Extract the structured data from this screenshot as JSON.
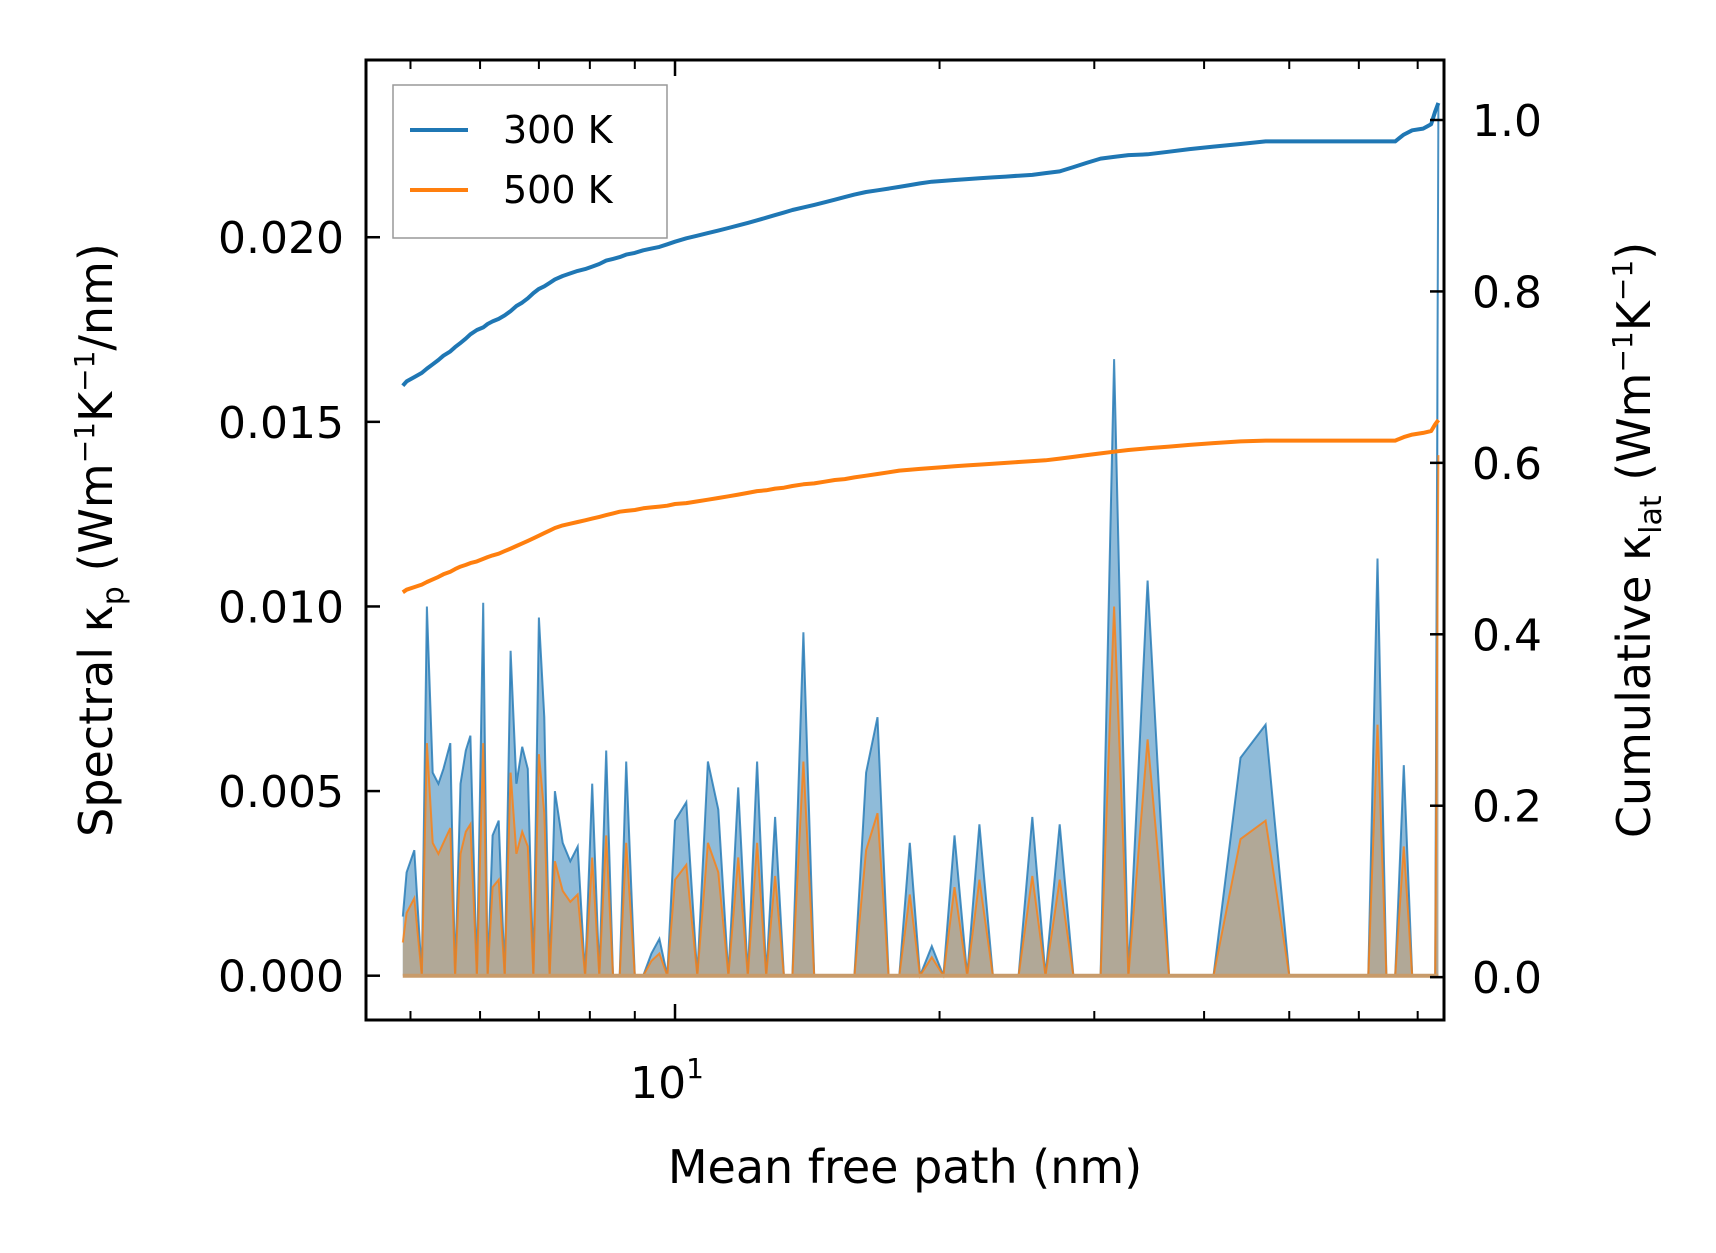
{
  "chart_data": {
    "type": "line",
    "xscale": "log",
    "xlim": [
      4.45,
      75
    ],
    "xlabel": "Mean free path (nm)",
    "ylabel_left": {
      "base": "Spectral κ",
      "sub": "p",
      "unit_pre": " (Wm",
      "exp1": "−1",
      "unit_mid": "K",
      "exp2": "−1",
      "unit_post": "/nm)"
    },
    "ylabel_right": {
      "base": "Cumulative κ",
      "sub": "lat",
      "unit_pre": " (Wm",
      "exp1": "−1",
      "unit_mid": "K",
      "exp2": "−1",
      "unit_post": ")"
    },
    "ylim_left": [
      -0.0012,
      0.0248
    ],
    "ylim_right": [
      -0.05,
      1.07
    ],
    "left_ticks": [
      {
        "value": 0.0,
        "label": "0.000"
      },
      {
        "value": 0.005,
        "label": "0.005"
      },
      {
        "value": 0.01,
        "label": "0.010"
      },
      {
        "value": 0.015,
        "label": "0.015"
      },
      {
        "value": 0.02,
        "label": "0.020"
      }
    ],
    "right_ticks": [
      {
        "value": 0.0,
        "label": "0.0"
      },
      {
        "value": 0.2,
        "label": "0.2"
      },
      {
        "value": 0.4,
        "label": "0.4"
      },
      {
        "value": 0.6,
        "label": "0.6"
      },
      {
        "value": 0.8,
        "label": "0.8"
      },
      {
        "value": 1.0,
        "label": "1.0"
      }
    ],
    "x_major_ticks": [
      {
        "value": 10,
        "base": "10",
        "exp": "1"
      }
    ],
    "x_minor_ticks": [
      5,
      6,
      7,
      8,
      9,
      20,
      30,
      40,
      50,
      60,
      70
    ],
    "legend": {
      "position": "upper-left",
      "entries": [
        {
          "label": "300 K",
          "color": "#1f77b4"
        },
        {
          "label": "500 K",
          "color": "#ff7f0e"
        }
      ]
    },
    "x": [
      4.9,
      4.95,
      5.05,
      5.15,
      5.22,
      5.3,
      5.38,
      5.45,
      5.55,
      5.62,
      5.7,
      5.78,
      5.85,
      5.95,
      6.05,
      6.12,
      6.2,
      6.3,
      6.4,
      6.5,
      6.6,
      6.7,
      6.8,
      6.9,
      7.0,
      7.1,
      7.2,
      7.3,
      7.45,
      7.6,
      7.75,
      7.9,
      8.05,
      8.2,
      8.35,
      8.5,
      8.65,
      8.8,
      9.0,
      9.2,
      9.4,
      9.6,
      9.8,
      10.0,
      10.3,
      10.6,
      10.9,
      11.2,
      11.5,
      11.8,
      12.1,
      12.4,
      12.7,
      13.0,
      13.3,
      13.6,
      14.0,
      14.4,
      14.8,
      15.2,
      15.6,
      16.0,
      16.5,
      17.0,
      17.5,
      18.0,
      18.5,
      19.0,
      19.6,
      20.2,
      20.8,
      21.5,
      22.2,
      23.0,
      23.8,
      24.6,
      25.5,
      26.4,
      27.4,
      28.4,
      29.4,
      30.5,
      31.6,
      32.8,
      34.5,
      36.5,
      38.5,
      41.0,
      44.0,
      47.0,
      50.0,
      53.0,
      56.0,
      58.5,
      60.0,
      61.5,
      63.0,
      64.5,
      66.0,
      67.5,
      69.0,
      71.0,
      72.5,
      73.3,
      73.9
    ],
    "series": [
      {
        "name": "300 K",
        "color": "#1f77b4",
        "spectral": [
          0.0016,
          0.0028,
          0.0034,
          0.0,
          0.01,
          0.0055,
          0.0052,
          0.0056,
          0.0063,
          0.0,
          0.0052,
          0.0061,
          0.0065,
          0.0,
          0.0101,
          0.0,
          0.0038,
          0.0042,
          0.0,
          0.0088,
          0.0052,
          0.0062,
          0.0056,
          0.0,
          0.0097,
          0.007,
          0.0,
          0.005,
          0.0036,
          0.0031,
          0.0035,
          0.0,
          0.0052,
          0.0,
          0.0061,
          0.0,
          0.0,
          0.0058,
          0.0,
          0.0,
          0.0006,
          0.001,
          0.0,
          0.0042,
          0.0047,
          0.0,
          0.0058,
          0.0045,
          0.0,
          0.0051,
          0.0,
          0.0058,
          0.0,
          0.0043,
          0.0,
          0.0,
          0.0093,
          0.0,
          0.0,
          0.0,
          0.0,
          0.0,
          0.0055,
          0.007,
          0.0,
          0.0,
          0.0036,
          0.0,
          0.0008,
          0.0,
          0.0038,
          0.0,
          0.0041,
          0.0,
          0.0,
          0.0,
          0.0043,
          0.0,
          0.0041,
          0.0,
          0.0,
          0.0,
          0.0167,
          0.0,
          0.0107,
          0.0,
          0.0,
          0.0,
          0.0059,
          0.0068,
          0.0,
          0.0,
          0.0,
          0.0,
          0.0,
          0.0,
          0.0113,
          0.0,
          0.0,
          0.0057,
          0.0,
          0.0,
          0.0,
          0.0,
          0.0236
        ],
        "cumulative": [
          0.69,
          0.695,
          0.7,
          0.705,
          0.71,
          0.715,
          0.72,
          0.725,
          0.73,
          0.735,
          0.74,
          0.745,
          0.75,
          0.755,
          0.758,
          0.762,
          0.765,
          0.768,
          0.772,
          0.777,
          0.783,
          0.787,
          0.792,
          0.798,
          0.803,
          0.806,
          0.81,
          0.814,
          0.818,
          0.821,
          0.824,
          0.826,
          0.829,
          0.832,
          0.836,
          0.838,
          0.84,
          0.843,
          0.845,
          0.848,
          0.85,
          0.852,
          0.855,
          0.858,
          0.862,
          0.865,
          0.868,
          0.871,
          0.874,
          0.877,
          0.88,
          0.883,
          0.886,
          0.889,
          0.892,
          0.895,
          0.898,
          0.901,
          0.904,
          0.907,
          0.91,
          0.913,
          0.916,
          0.918,
          0.92,
          0.922,
          0.924,
          0.926,
          0.928,
          0.929,
          0.93,
          0.931,
          0.932,
          0.933,
          0.934,
          0.935,
          0.936,
          0.938,
          0.94,
          0.945,
          0.95,
          0.955,
          0.957,
          0.959,
          0.96,
          0.963,
          0.966,
          0.969,
          0.972,
          0.975,
          0.975,
          0.975,
          0.975,
          0.975,
          0.975,
          0.975,
          0.975,
          0.975,
          0.975,
          0.983,
          0.988,
          0.99,
          0.995,
          1.01,
          1.02
        ]
      },
      {
        "name": "500 K",
        "color": "#ff7f0e",
        "spectral": [
          0.0009,
          0.0017,
          0.0021,
          0.0,
          0.0063,
          0.0036,
          0.0033,
          0.0036,
          0.004,
          0.0,
          0.0033,
          0.0039,
          0.0041,
          0.0,
          0.0063,
          0.0,
          0.0024,
          0.0026,
          0.0,
          0.0055,
          0.0033,
          0.0039,
          0.0035,
          0.0,
          0.006,
          0.0044,
          0.0,
          0.0031,
          0.0023,
          0.002,
          0.0022,
          0.0,
          0.0032,
          0.0,
          0.0038,
          0.0,
          0.0,
          0.0036,
          0.0,
          0.0,
          0.0004,
          0.0006,
          0.0,
          0.0026,
          0.003,
          0.0,
          0.0036,
          0.0028,
          0.0,
          0.0032,
          0.0,
          0.0036,
          0.0,
          0.0027,
          0.0,
          0.0,
          0.0058,
          0.0,
          0.0,
          0.0,
          0.0,
          0.0,
          0.0034,
          0.0044,
          0.0,
          0.0,
          0.0022,
          0.0,
          0.0005,
          0.0,
          0.0024,
          0.0,
          0.0026,
          0.0,
          0.0,
          0.0,
          0.0027,
          0.0,
          0.0026,
          0.0,
          0.0,
          0.0,
          0.01,
          0.0,
          0.0064,
          0.0,
          0.0,
          0.0,
          0.0037,
          0.0042,
          0.0,
          0.0,
          0.0,
          0.0,
          0.0,
          0.0,
          0.0068,
          0.0,
          0.0,
          0.0035,
          0.0,
          0.0,
          0.0,
          0.0,
          0.0141
        ],
        "cumulative": [
          0.449,
          0.452,
          0.455,
          0.458,
          0.461,
          0.464,
          0.467,
          0.47,
          0.473,
          0.476,
          0.479,
          0.481,
          0.483,
          0.485,
          0.488,
          0.49,
          0.492,
          0.494,
          0.497,
          0.5,
          0.503,
          0.506,
          0.509,
          0.512,
          0.515,
          0.518,
          0.521,
          0.524,
          0.527,
          0.529,
          0.531,
          0.533,
          0.535,
          0.537,
          0.539,
          0.541,
          0.543,
          0.544,
          0.545,
          0.547,
          0.548,
          0.549,
          0.55,
          0.552,
          0.553,
          0.555,
          0.557,
          0.559,
          0.561,
          0.563,
          0.565,
          0.567,
          0.568,
          0.57,
          0.571,
          0.573,
          0.575,
          0.576,
          0.578,
          0.58,
          0.581,
          0.583,
          0.585,
          0.587,
          0.589,
          0.591,
          0.592,
          0.593,
          0.594,
          0.595,
          0.596,
          0.597,
          0.598,
          0.599,
          0.6,
          0.601,
          0.602,
          0.603,
          0.605,
          0.607,
          0.609,
          0.611,
          0.613,
          0.615,
          0.617,
          0.619,
          0.621,
          0.623,
          0.625,
          0.626,
          0.626,
          0.626,
          0.626,
          0.626,
          0.626,
          0.626,
          0.626,
          0.626,
          0.626,
          0.63,
          0.633,
          0.635,
          0.637,
          0.645,
          0.65
        ]
      }
    ]
  }
}
